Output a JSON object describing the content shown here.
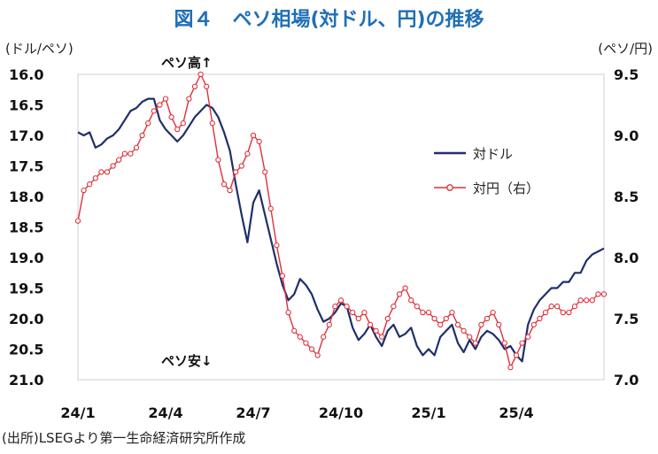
{
  "title": "図４　ペソ相場(対ドル、円)の推移",
  "left_unit": "(ドル/ペソ)",
  "right_unit": "(ペソ/円)",
  "source": "(出所)LSEGより第一生命経済研究所作成",
  "annotations": {
    "top": "ペソ高↑",
    "bottom": "ペソ安↓"
  },
  "colors": {
    "usd": "#1f2f6b",
    "jpy": "#e0303a"
  },
  "chart_data": {
    "type": "line",
    "x_labels": [
      "24/1",
      "24/4",
      "24/7",
      "24/10",
      "25/1",
      "25/4"
    ],
    "left_axis": {
      "min": 16.0,
      "max": 21.0,
      "inverted": true,
      "ticks": [
        "16.0",
        "16.5",
        "17.0",
        "17.5",
        "18.0",
        "18.5",
        "19.0",
        "19.5",
        "20.0",
        "20.5",
        "21.0"
      ]
    },
    "right_axis": {
      "min": 7.0,
      "max": 9.5,
      "ticks": [
        "9.5",
        "9.0",
        "8.5",
        "8.0",
        "7.5",
        "7.0"
      ]
    },
    "grid": false,
    "legend_position": "center-right",
    "series": [
      {
        "name": "対ドル",
        "axis": "left",
        "marker": "none",
        "x": [
          0,
          0.2,
          0.4,
          0.6,
          0.8,
          1,
          1.2,
          1.4,
          1.6,
          1.8,
          2,
          2.2,
          2.4,
          2.6,
          2.8,
          3,
          3.2,
          3.4,
          3.6,
          3.8,
          4,
          4.2,
          4.4,
          4.6,
          4.8,
          5,
          5.2,
          5.4,
          5.6,
          5.8,
          6,
          6.2,
          6.4,
          6.6,
          6.8,
          7,
          7.2,
          7.4,
          7.6,
          7.8,
          8,
          8.2,
          8.4,
          8.6,
          8.8,
          9,
          9.2,
          9.4,
          9.6,
          9.8,
          10,
          10.2,
          10.4,
          10.6,
          10.8,
          11,
          11.2,
          11.4,
          11.6,
          11.8,
          12,
          12.2,
          12.4,
          12.6,
          12.8,
          13,
          13.2,
          13.4,
          13.6,
          13.8,
          14,
          14.2,
          14.4,
          14.6,
          14.8,
          15,
          15.2,
          15.4,
          15.6,
          15.8,
          16,
          16.2,
          16.4,
          16.6,
          16.8,
          17,
          17.2,
          17.4,
          17.6,
          17.8,
          18
        ],
        "y": [
          16.95,
          17.0,
          16.95,
          17.2,
          17.15,
          17.05,
          17.0,
          16.9,
          16.75,
          16.6,
          16.55,
          16.45,
          16.4,
          16.4,
          16.75,
          16.9,
          17.0,
          17.1,
          17.0,
          16.85,
          16.7,
          16.6,
          16.5,
          16.55,
          16.7,
          16.95,
          17.25,
          17.8,
          18.3,
          18.75,
          18.1,
          17.9,
          18.3,
          18.7,
          19.1,
          19.45,
          19.7,
          19.6,
          19.35,
          19.45,
          19.6,
          19.85,
          20.05,
          20.0,
          19.9,
          19.75,
          19.8,
          20.15,
          20.35,
          20.25,
          20.1,
          20.3,
          20.45,
          20.2,
          20.1,
          20.3,
          20.25,
          20.15,
          20.45,
          20.6,
          20.5,
          20.6,
          20.3,
          20.2,
          20.1,
          20.4,
          20.55,
          20.35,
          20.5,
          20.3,
          20.2,
          20.25,
          20.35,
          20.5,
          20.45,
          20.6,
          20.7,
          20.1,
          19.85,
          19.7,
          19.6,
          19.5,
          19.5,
          19.4,
          19.4,
          19.25,
          19.25,
          19.05,
          18.95,
          18.9,
          18.85
        ]
      },
      {
        "name": "対円（右）",
        "axis": "right",
        "marker": "circle",
        "x": [
          0,
          0.2,
          0.4,
          0.6,
          0.8,
          1,
          1.2,
          1.4,
          1.6,
          1.8,
          2,
          2.2,
          2.4,
          2.6,
          2.8,
          3,
          3.2,
          3.4,
          3.6,
          3.8,
          4,
          4.2,
          4.4,
          4.6,
          4.8,
          5,
          5.2,
          5.4,
          5.6,
          5.8,
          6,
          6.2,
          6.4,
          6.6,
          6.8,
          7,
          7.2,
          7.4,
          7.6,
          7.8,
          8,
          8.2,
          8.4,
          8.6,
          8.8,
          9,
          9.2,
          9.4,
          9.6,
          9.8,
          10,
          10.2,
          10.4,
          10.6,
          10.8,
          11,
          11.2,
          11.4,
          11.6,
          11.8,
          12,
          12.2,
          12.4,
          12.6,
          12.8,
          13,
          13.2,
          13.4,
          13.6,
          13.8,
          14,
          14.2,
          14.4,
          14.6,
          14.8,
          15,
          15.2,
          15.4,
          15.6,
          15.8,
          16,
          16.2,
          16.4,
          16.6,
          16.8,
          17,
          17.2,
          17.4,
          17.6,
          17.8,
          18
        ],
        "y": [
          8.3,
          8.55,
          8.6,
          8.65,
          8.7,
          8.7,
          8.75,
          8.8,
          8.85,
          8.85,
          8.9,
          9.0,
          9.1,
          9.2,
          9.25,
          9.3,
          9.15,
          9.05,
          9.1,
          9.3,
          9.4,
          9.5,
          9.4,
          9.1,
          8.8,
          8.6,
          8.55,
          8.7,
          8.75,
          8.85,
          9.0,
          8.95,
          8.7,
          8.4,
          8.1,
          7.85,
          7.55,
          7.4,
          7.35,
          7.3,
          7.25,
          7.2,
          7.35,
          7.45,
          7.6,
          7.65,
          7.6,
          7.55,
          7.5,
          7.55,
          7.45,
          7.4,
          7.35,
          7.5,
          7.6,
          7.7,
          7.75,
          7.65,
          7.6,
          7.55,
          7.55,
          7.5,
          7.45,
          7.5,
          7.55,
          7.45,
          7.4,
          7.35,
          7.3,
          7.45,
          7.5,
          7.55,
          7.45,
          7.3,
          7.1,
          7.2,
          7.3,
          7.35,
          7.45,
          7.5,
          7.55,
          7.6,
          7.6,
          7.55,
          7.55,
          7.6,
          7.65,
          7.65,
          7.65,
          7.7,
          7.7
        ]
      }
    ]
  }
}
